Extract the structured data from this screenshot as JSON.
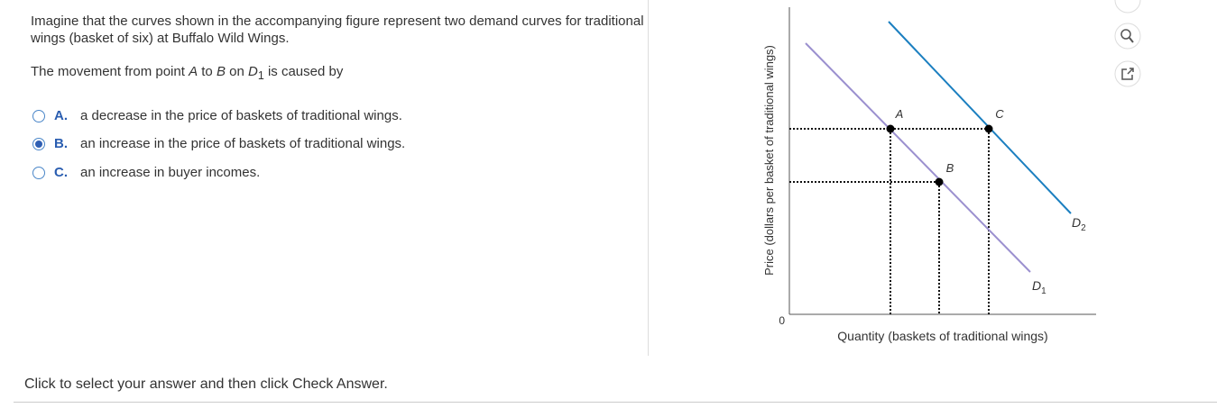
{
  "question": {
    "text": "Imagine that the curves shown in the accompanying figure represent two demand curves for traditional wings (basket of six) at Buffalo Wild Wings.",
    "prompt": {
      "before": "The movement from point ",
      "from": "A",
      "mid": " to ",
      "to": "B",
      "on": " on ",
      "curve": "D",
      "curve_sub": "1",
      "after": " is caused by"
    },
    "options": [
      {
        "letter": "A.",
        "text": "a decrease in the price of baskets of traditional wings.",
        "selected": false
      },
      {
        "letter": "B.",
        "text": "an increase in the price of baskets of traditional wings.",
        "selected": true
      },
      {
        "letter": "C.",
        "text": "an increase in buyer incomes.",
        "selected": false
      }
    ]
  },
  "footer": "Click to select your answer and then click Check Answer.",
  "figure": {
    "y_label": "Price (dollars per basket of traditional wings)",
    "x_label": "Quantity (baskets of traditional wings)",
    "origin": "0",
    "points": [
      "A",
      "B",
      "C"
    ],
    "curves": [
      {
        "name": "D",
        "sub": "1",
        "color": "#9b90cf"
      },
      {
        "name": "D",
        "sub": "2",
        "color": "#1b7fc0"
      }
    ]
  }
}
